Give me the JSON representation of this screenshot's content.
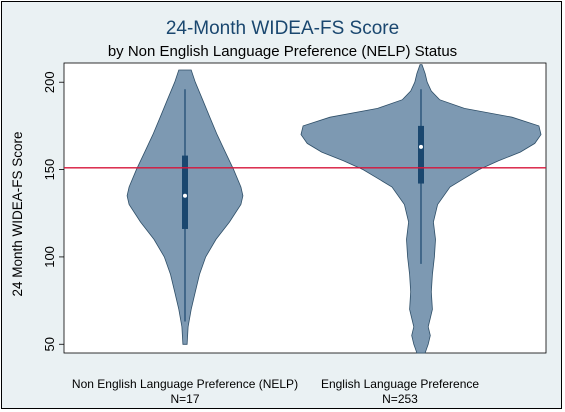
{
  "chart_data": {
    "type": "violin",
    "title": "24-Month WIDEA-FS Score",
    "subtitle": "by Non English Language Preference (NELP) Status",
    "ylabel": "24 Month WIDEA-FS Score",
    "xlabel": "",
    "ylim": [
      45,
      211
    ],
    "yticks": [
      50,
      100,
      150,
      200
    ],
    "grid": false,
    "reference_line": {
      "y": 151,
      "color": "#d7153a"
    },
    "fill_color": "#7d99b2",
    "box_color": "#1a476f",
    "groups": [
      {
        "label": "Non English Language Preference (NELP)",
        "n_label": "N=17",
        "median": 135,
        "q1": 116,
        "q3": 158,
        "whisker_low": 63,
        "whisker_high": 196,
        "density": [
          [
            50,
            2
          ],
          [
            60,
            3
          ],
          [
            70,
            6
          ],
          [
            80,
            10
          ],
          [
            90,
            14
          ],
          [
            100,
            20
          ],
          [
            110,
            30
          ],
          [
            120,
            43
          ],
          [
            130,
            54
          ],
          [
            135,
            56
          ],
          [
            140,
            54
          ],
          [
            150,
            47
          ],
          [
            160,
            39
          ],
          [
            170,
            31
          ],
          [
            180,
            24
          ],
          [
            190,
            17
          ],
          [
            200,
            10
          ],
          [
            207,
            6
          ]
        ]
      },
      {
        "label": "English Language Preference",
        "n_label": "N=253",
        "median": 163,
        "q1": 142,
        "q3": 175,
        "whisker_low": 96,
        "whisker_high": 196,
        "density": [
          [
            38,
            1
          ],
          [
            45,
            4
          ],
          [
            50,
            7
          ],
          [
            55,
            9
          ],
          [
            60,
            7
          ],
          [
            65,
            9
          ],
          [
            70,
            11
          ],
          [
            80,
            10
          ],
          [
            90,
            11
          ],
          [
            100,
            13
          ],
          [
            110,
            14
          ],
          [
            120,
            12
          ],
          [
            130,
            16
          ],
          [
            140,
            28
          ],
          [
            145,
            42
          ],
          [
            150,
            56
          ],
          [
            155,
            75
          ],
          [
            160,
            96
          ],
          [
            165,
            110
          ],
          [
            170,
            116
          ],
          [
            175,
            114
          ],
          [
            180,
            88
          ],
          [
            185,
            42
          ],
          [
            190,
            18
          ],
          [
            195,
            10
          ],
          [
            200,
            6
          ],
          [
            205,
            4
          ],
          [
            210,
            1
          ]
        ]
      }
    ]
  }
}
